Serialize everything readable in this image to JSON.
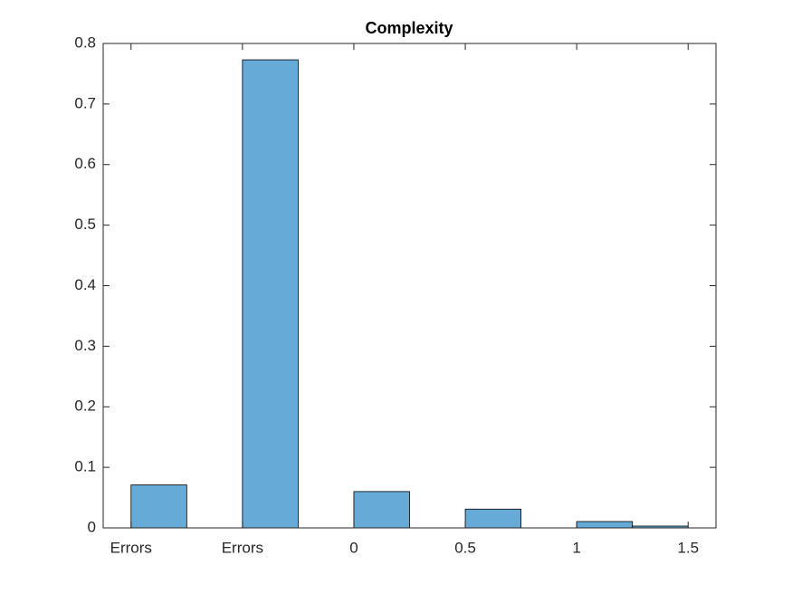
{
  "chart_data": {
    "type": "histogram",
    "title": "Complexity",
    "bins": [
      -1,
      -0.75,
      -0.5,
      -0.25,
      0,
      0.25,
      0.5,
      0.75,
      1,
      1.25,
      1.5
    ],
    "counts": [
      0.071,
      0,
      0.773,
      0,
      0.06,
      0,
      0.031,
      0,
      0.0105,
      0.003
    ],
    "color": "#66aad7",
    "edgecolor": "#000000",
    "xlim": [
      -1.125,
      1.625
    ],
    "xticks": [
      {
        "value": -1,
        "label": "Errors"
      },
      {
        "value": -0.5,
        "label": "Errors"
      },
      0,
      0.5,
      1,
      1.5
    ],
    "ylim": [
      0,
      0.8
    ],
    "yticks": [
      0,
      0.1,
      0.2,
      0.3,
      0.4,
      0.5,
      0.6,
      0.7,
      0.8
    ],
    "grid": false
  }
}
